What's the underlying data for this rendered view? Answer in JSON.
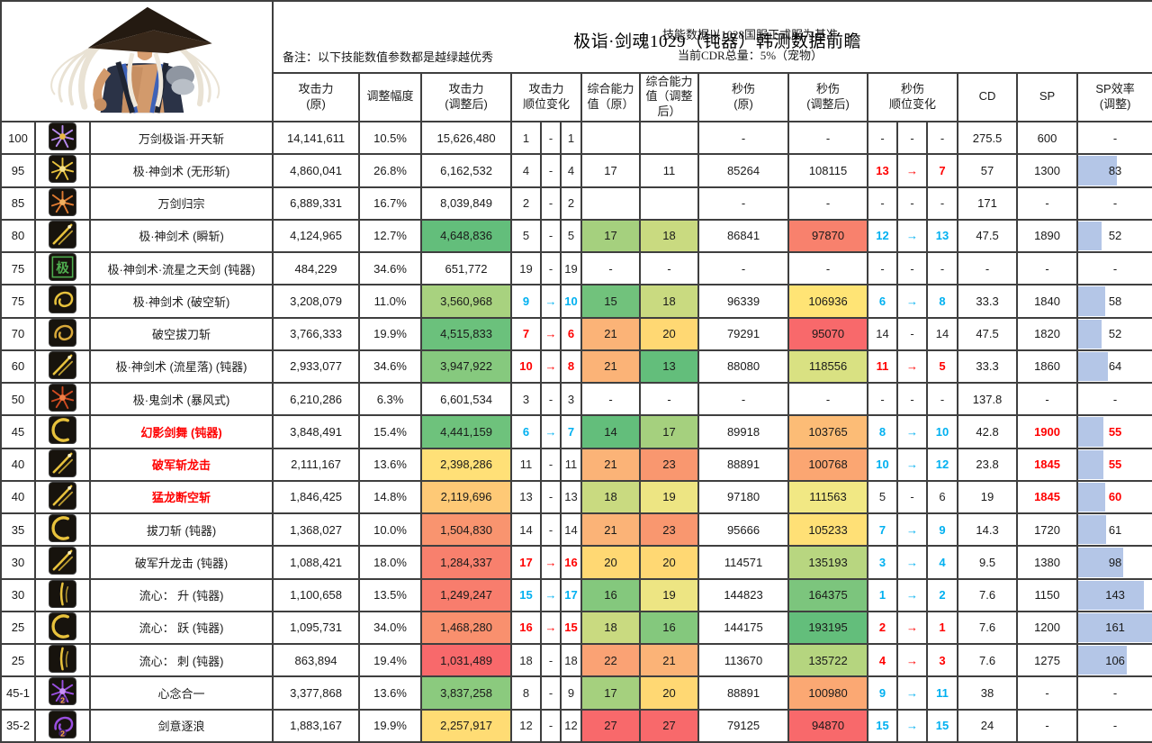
{
  "header": {
    "title": "极诣·剑魂1029（钝器）韩测数据前瞻",
    "note_left": "备注：以下技能数值参数都是越绿越优秀",
    "note_right_line1": "技能数据以1028国服正式服为基准",
    "note_right_line2": "当前CDR总量：5%（宠物）"
  },
  "colors": {
    "rank_up_red": "#ff0000",
    "rank_down_blue": "#00b0f0",
    "data_bar": "#B4C6E7",
    "grid_line": "#3f3f3f"
  },
  "columns": [
    {
      "label": "攻击力\n(原)"
    },
    {
      "label": "调整幅度"
    },
    {
      "label": "攻击力\n(调整后)"
    },
    {
      "label": "攻击力\n顺位变化"
    },
    {
      "label": "综合能力\n值（原）"
    },
    {
      "label": "综合能力\n值（调整\n后）"
    },
    {
      "label": "秒伤\n(原)"
    },
    {
      "label": "秒伤\n(调整后)"
    },
    {
      "label": "秒伤\n顺位变化"
    },
    {
      "label": "CD"
    },
    {
      "label": "SP"
    },
    {
      "label": "SP效率\n(调整)"
    }
  ],
  "sp_eff_bar_max": 161,
  "rows": [
    {
      "lv": "100",
      "icon": {
        "g": "burst",
        "c": "#b88bf0",
        "c2": "#e8b842",
        "badge": ""
      },
      "name": "万剑极诣·开天斩",
      "red": false,
      "a1": "14,141,611",
      "pct": "10.5%",
      "a2": [
        "15,626,480",
        ""
      ],
      "ar": [
        "1",
        "-",
        "1",
        "k"
      ],
      "co": [
        "",
        ""
      ],
      "ca": [
        "",
        ""
      ],
      "d1": "-",
      "d2": [
        "-",
        ""
      ],
      "dr": [
        "-",
        "-",
        "-",
        "k"
      ],
      "cd": "275.5",
      "sp": [
        "600",
        false
      ],
      "se": [
        "-",
        false,
        0
      ]
    },
    {
      "lv": "95",
      "icon": {
        "g": "burst",
        "c": "#e8c23c",
        "c2": "#f5e08a",
        "badge": ""
      },
      "name": "极·神剑术 (无形斩)",
      "red": false,
      "a1": "4,860,041",
      "pct": "26.8%",
      "a2": [
        "6,162,532",
        ""
      ],
      "ar": [
        "4",
        "-",
        "4",
        "k"
      ],
      "co": [
        "17",
        ""
      ],
      "ca": [
        "11",
        ""
      ],
      "d1": "85264",
      "d2": [
        "108115",
        ""
      ],
      "dr": [
        "13",
        "→",
        "7",
        "r"
      ],
      "cd": "57",
      "sp": [
        "1300",
        false
      ],
      "se": [
        "83",
        false,
        52
      ]
    },
    {
      "lv": "85",
      "icon": {
        "g": "burst",
        "c": "#e07a30",
        "c2": "#f0b060",
        "badge": ""
      },
      "name": "万剑归宗",
      "red": false,
      "a1": "6,889,331",
      "pct": "16.7%",
      "a2": [
        "8,039,849",
        ""
      ],
      "ar": [
        "2",
        "-",
        "2",
        "k"
      ],
      "co": [
        "",
        ""
      ],
      "ca": [
        "",
        ""
      ],
      "d1": "-",
      "d2": [
        "-",
        ""
      ],
      "dr": [
        "-",
        "-",
        "-",
        "k"
      ],
      "cd": "171",
      "sp": [
        "-",
        false
      ],
      "se": [
        "-",
        false,
        0
      ]
    },
    {
      "lv": "80",
      "icon": {
        "g": "slash",
        "c": "#e8c23c",
        "c2": "",
        "badge": ""
      },
      "name": "极·神剑术 (瞬斩)",
      "red": false,
      "a1": "4,124,965",
      "pct": "12.7%",
      "a2": [
        "4,648,836",
        "#63BE7B"
      ],
      "ar": [
        "5",
        "-",
        "5",
        "k"
      ],
      "co": [
        "17",
        "#A5D07E"
      ],
      "ca": [
        "18",
        "#C9DA80"
      ],
      "d1": "86841",
      "d2": [
        "97870",
        "#F8816D"
      ],
      "dr": [
        "12",
        "→",
        "13",
        "b"
      ],
      "cd": "47.5",
      "sp": [
        "1890",
        false
      ],
      "se": [
        "52",
        false,
        32
      ]
    },
    {
      "lv": "75",
      "icon": {
        "g": "kanji",
        "c": "#4fae4f",
        "c2": "",
        "badge": ""
      },
      "name": "极·神剑术·流星之天剑 (钝器)",
      "red": false,
      "a1": "484,229",
      "pct": "34.6%",
      "a2": [
        "651,772",
        ""
      ],
      "ar": [
        "19",
        "-",
        "19",
        "k"
      ],
      "co": [
        "-",
        ""
      ],
      "ca": [
        "-",
        ""
      ],
      "d1": "-",
      "d2": [
        "-",
        ""
      ],
      "dr": [
        "-",
        "-",
        "-",
        "k"
      ],
      "cd": "-",
      "sp": [
        "-",
        false
      ],
      "se": [
        "-",
        false,
        0
      ]
    },
    {
      "lv": "75",
      "icon": {
        "g": "swirl",
        "c": "#e8c23c",
        "c2": "",
        "badge": ""
      },
      "name": "极·神剑术 (破空斩)",
      "red": false,
      "a1": "3,208,079",
      "pct": "11.0%",
      "a2": [
        "3,560,968",
        "#A8D27F"
      ],
      "ar": [
        "9",
        "→",
        "10",
        "b"
      ],
      "co": [
        "15",
        "#71C27C"
      ],
      "ca": [
        "18",
        "#C9DA80"
      ],
      "d1": "96339",
      "d2": [
        "106936",
        "#FFE475"
      ],
      "dr": [
        "6",
        "→",
        "8",
        "b"
      ],
      "cd": "33.3",
      "sp": [
        "1840",
        false
      ],
      "se": [
        "58",
        false,
        36
      ]
    },
    {
      "lv": "70",
      "icon": {
        "g": "swirl",
        "c": "#d9a93a",
        "c2": "",
        "badge": ""
      },
      "name": "破空拔刀斩",
      "red": false,
      "a1": "3,766,333",
      "pct": "19.9%",
      "a2": [
        "4,515,833",
        "#6BC17C"
      ],
      "ar": [
        "7",
        "→",
        "6",
        "r"
      ],
      "co": [
        "21",
        "#FBB377"
      ],
      "ca": [
        "20",
        "#FFD873"
      ],
      "d1": "79291",
      "d2": [
        "95070",
        "#F8696B"
      ],
      "dr": [
        "14",
        "-",
        "14",
        "k"
      ],
      "cd": "47.5",
      "sp": [
        "1820",
        false
      ],
      "se": [
        "52",
        false,
        32
      ]
    },
    {
      "lv": "60",
      "icon": {
        "g": "slash",
        "c": "#e8c23c",
        "c2": "",
        "badge": ""
      },
      "name": "极·神剑术 (流星落) (钝器)",
      "red": false,
      "a1": "2,933,077",
      "pct": "34.6%",
      "a2": [
        "3,947,922",
        "#86C97E"
      ],
      "ar": [
        "10",
        "→",
        "8",
        "r"
      ],
      "co": [
        "21",
        "#FBB377"
      ],
      "ca": [
        "13",
        "#63BE7B"
      ],
      "d1": "88080",
      "d2": [
        "118556",
        "#D9E182"
      ],
      "dr": [
        "11",
        "→",
        "5",
        "r"
      ],
      "cd": "33.3",
      "sp": [
        "1860",
        false
      ],
      "se": [
        "64",
        false,
        40
      ]
    },
    {
      "lv": "50",
      "icon": {
        "g": "burst",
        "c": "#cf4a20",
        "c2": "#f08048",
        "badge": ""
      },
      "name": "极·鬼剑术 (暴风式)",
      "red": false,
      "a1": "6,210,286",
      "pct": "6.3%",
      "a2": [
        "6,601,534",
        ""
      ],
      "ar": [
        "3",
        "-",
        "3",
        "k"
      ],
      "co": [
        "-",
        ""
      ],
      "ca": [
        "-",
        ""
      ],
      "d1": "-",
      "d2": [
        "-",
        ""
      ],
      "dr": [
        "-",
        "-",
        "-",
        "k"
      ],
      "cd": "137.8",
      "sp": [
        "-",
        false
      ],
      "se": [
        "-",
        false,
        0
      ]
    },
    {
      "lv": "45",
      "icon": {
        "g": "crescent",
        "c": "#e8c23c",
        "c2": "",
        "badge": ""
      },
      "name": "幻影剑舞 (钝器)",
      "red": true,
      "a1": "3,848,491",
      "pct": "15.4%",
      "a2": [
        "4,441,159",
        "#6EC27C"
      ],
      "ar": [
        "6",
        "→",
        "7",
        "b"
      ],
      "co": [
        "14",
        "#63BE7B"
      ],
      "ca": [
        "17",
        "#A5D07E"
      ],
      "d1": "89918",
      "d2": [
        "103765",
        "#FCBC76"
      ],
      "dr": [
        "8",
        "→",
        "10",
        "b"
      ],
      "cd": "42.8",
      "sp": [
        "1900",
        true
      ],
      "se": [
        "55",
        true,
        34
      ]
    },
    {
      "lv": "40",
      "icon": {
        "g": "slash",
        "c": "#e8c23c",
        "c2": "",
        "badge": ""
      },
      "name": "破军斩龙击",
      "red": true,
      "a1": "2,111,167",
      "pct": "13.6%",
      "a2": [
        "2,398,286",
        "#FFE077"
      ],
      "ar": [
        "11",
        "-",
        "11",
        "k"
      ],
      "co": [
        "21",
        "#FBB377"
      ],
      "ca": [
        "23",
        "#F9976F"
      ],
      "d1": "88891",
      "d2": [
        "100768",
        "#FBA672"
      ],
      "dr": [
        "10",
        "→",
        "12",
        "b"
      ],
      "cd": "23.8",
      "sp": [
        "1845",
        true
      ],
      "se": [
        "55",
        true,
        34
      ]
    },
    {
      "lv": "40",
      "icon": {
        "g": "slash",
        "c": "#e8c23c",
        "c2": "",
        "badge": ""
      },
      "name": "猛龙断空斩",
      "red": true,
      "a1": "1,846,425",
      "pct": "14.8%",
      "a2": [
        "2,119,696",
        "#FEC976"
      ],
      "ar": [
        "13",
        "-",
        "13",
        "k"
      ],
      "co": [
        "18",
        "#C9DA80"
      ],
      "ca": [
        "19",
        "#EDE583"
      ],
      "d1": "97180",
      "d2": [
        "111563",
        "#F1E884"
      ],
      "dr": [
        "5",
        "-",
        "6",
        "k"
      ],
      "cd": "19",
      "sp": [
        "1845",
        true
      ],
      "se": [
        "60",
        true,
        37
      ]
    },
    {
      "lv": "35",
      "icon": {
        "g": "crescent",
        "c": "#e8c23c",
        "c2": "",
        "badge": ""
      },
      "name": "拔刀斩 (钝器)",
      "red": false,
      "a1": "1,368,027",
      "pct": "10.0%",
      "a2": [
        "1,504,830",
        "#F9946F"
      ],
      "ar": [
        "14",
        "-",
        "14",
        "k"
      ],
      "co": [
        "21",
        "#FBB377"
      ],
      "ca": [
        "23",
        "#F9976F"
      ],
      "d1": "95666",
      "d2": [
        "105233",
        "#FFE076"
      ],
      "dr": [
        "7",
        "→",
        "9",
        "b"
      ],
      "cd": "14.3",
      "sp": [
        "1720",
        false
      ],
      "se": [
        "61",
        false,
        38
      ]
    },
    {
      "lv": "30",
      "icon": {
        "g": "slash",
        "c": "#e8c23c",
        "c2": "",
        "badge": ""
      },
      "name": "破军升龙击 (钝器)",
      "red": false,
      "a1": "1,088,421",
      "pct": "18.0%",
      "a2": [
        "1,284,337",
        "#F8806D"
      ],
      "ar": [
        "17",
        "→",
        "16",
        "r"
      ],
      "co": [
        "20",
        "#FFD873"
      ],
      "ca": [
        "20",
        "#FFD873"
      ],
      "d1": "114571",
      "d2": [
        "135193",
        "#B8D680"
      ],
      "dr": [
        "3",
        "→",
        "4",
        "b"
      ],
      "cd": "9.5",
      "sp": [
        "1380",
        false
      ],
      "se": [
        "98",
        false,
        61
      ]
    },
    {
      "lv": "30",
      "icon": {
        "g": "vslash",
        "c": "#e8c23c",
        "c2": "",
        "badge": ""
      },
      "name": "流心： 升 (钝器)",
      "red": false,
      "a1": "1,100,658",
      "pct": "13.5%",
      "a2": [
        "1,249,247",
        "#F87D6D"
      ],
      "ar": [
        "15",
        "→",
        "17",
        "b"
      ],
      "co": [
        "16",
        "#84C87D"
      ],
      "ca": [
        "19",
        "#EDE583"
      ],
      "d1": "144823",
      "d2": [
        "164375",
        "#7CC57D"
      ],
      "dr": [
        "1",
        "→",
        "2",
        "b"
      ],
      "cd": "7.6",
      "sp": [
        "1150",
        false
      ],
      "se": [
        "143",
        false,
        89
      ]
    },
    {
      "lv": "25",
      "icon": {
        "g": "crescent",
        "c": "#e8c23c",
        "c2": "",
        "badge": ""
      },
      "name": "流心： 跃 (钝器)",
      "red": false,
      "a1": "1,095,731",
      "pct": "34.0%",
      "a2": [
        "1,468,280",
        "#F9906E"
      ],
      "ar": [
        "16",
        "→",
        "15",
        "r"
      ],
      "co": [
        "18",
        "#C9DA80"
      ],
      "ca": [
        "16",
        "#84C87D"
      ],
      "d1": "144175",
      "d2": [
        "193195",
        "#63BE7B"
      ],
      "dr": [
        "2",
        "→",
        "1",
        "r"
      ],
      "cd": "7.6",
      "sp": [
        "1200",
        false
      ],
      "se": [
        "161",
        false,
        100
      ]
    },
    {
      "lv": "25",
      "icon": {
        "g": "vslash",
        "c": "#e8c23c",
        "c2": "",
        "badge": ""
      },
      "name": "流心： 刺 (钝器)",
      "red": false,
      "a1": "863,894",
      "pct": "19.4%",
      "a2": [
        "1,031,489",
        "#F8696B"
      ],
      "ar": [
        "18",
        "-",
        "18",
        "k"
      ],
      "co": [
        "22",
        "#FAA274"
      ],
      "ca": [
        "21",
        "#FBB377"
      ],
      "d1": "113670",
      "d2": [
        "135722",
        "#B5D57F"
      ],
      "dr": [
        "4",
        "→",
        "3",
        "r"
      ],
      "cd": "7.6",
      "sp": [
        "1275",
        false
      ],
      "se": [
        "106",
        false,
        66
      ]
    },
    {
      "lv": "45-1",
      "icon": {
        "g": "burst",
        "c": "#9a4fe0",
        "c2": "#c890f5",
        "badge": "2"
      },
      "name": "心念合一",
      "red": false,
      "a1": "3,377,868",
      "pct": "13.6%",
      "a2": [
        "3,837,258",
        "#8BCA7E"
      ],
      "ar": [
        "8",
        "-",
        "9",
        "k"
      ],
      "co": [
        "17",
        "#A5D07E"
      ],
      "ca": [
        "20",
        "#FFD873"
      ],
      "d1": "88891",
      "d2": [
        "100980",
        "#FBA873"
      ],
      "dr": [
        "9",
        "→",
        "11",
        "b"
      ],
      "cd": "38",
      "sp": [
        "-",
        false
      ],
      "se": [
        "-",
        false,
        0
      ]
    },
    {
      "lv": "35-2",
      "icon": {
        "g": "swirl",
        "c": "#9a4fe0",
        "c2": "",
        "badge": "2"
      },
      "name": "剑意逐浪",
      "red": false,
      "a1": "1,883,167",
      "pct": "19.9%",
      "a2": [
        "2,257,917",
        "#FFDC74"
      ],
      "ar": [
        "12",
        "-",
        "12",
        "k"
      ],
      "co": [
        "27",
        "#F8696B"
      ],
      "ca": [
        "27",
        "#F8696B"
      ],
      "d1": "79125",
      "d2": [
        "94870",
        "#F8696B"
      ],
      "dr": [
        "15",
        "→",
        "15",
        "b"
      ],
      "cd": "24",
      "sp": [
        "-",
        false
      ],
      "se": [
        "-",
        false,
        0
      ]
    }
  ]
}
